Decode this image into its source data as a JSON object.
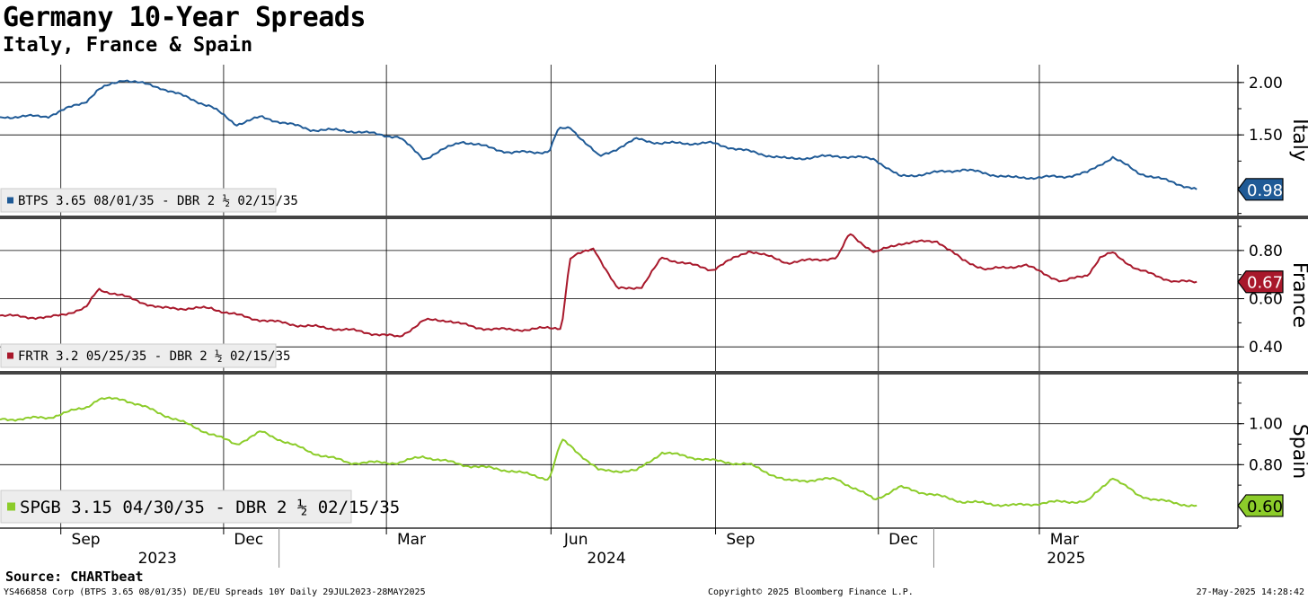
{
  "header": {
    "title": "Germany 10-Year Spreads",
    "subtitle": "Italy, France & Spain"
  },
  "footer": {
    "source": "Source: CHARTbeat",
    "left": "YS466858 Corp (BTPS 3.65 08/01/35) DE/EU Spreads 10Y  Daily 29JUL2023-28MAY2025",
    "middle": "Copyright© 2025 Bloomberg Finance L.P.",
    "right": "27-May-2025 14:28:42"
  },
  "colors": {
    "italy": "#1f5a96",
    "france": "#a8182b",
    "spain": "#8ccc2a",
    "grid": "#000000"
  },
  "chart_data": [
    {
      "type": "line",
      "panel": "Italy",
      "ylabel": "Italy",
      "legend": "BTPS 3.65 08/01/35 - DBR 2 ½ 02/15/35",
      "last_value": "0.98",
      "yticks": [
        2.0,
        1.5
      ],
      "ytick_labels": [
        "2.00",
        "1.50"
      ],
      "ylim": [
        0.73,
        2.17
      ],
      "x": [
        "2023-07-29",
        "2023-08-25",
        "2023-09-15",
        "2023-09-22",
        "2023-10-06",
        "2023-10-27",
        "2023-11-24",
        "2023-12-08",
        "2023-12-22",
        "2024-01-19",
        "2024-02-09",
        "2024-03-08",
        "2024-03-22",
        "2024-04-12",
        "2024-05-10",
        "2024-05-31",
        "2024-06-05",
        "2024-06-12",
        "2024-06-28",
        "2024-07-19",
        "2024-08-02",
        "2024-08-30",
        "2024-09-20",
        "2024-10-11",
        "2024-11-08",
        "2024-11-29",
        "2024-12-13",
        "2025-01-17",
        "2025-02-14",
        "2025-03-14",
        "2025-03-28",
        "2025-04-11",
        "2025-04-25",
        "2025-05-16",
        "2025-05-28"
      ],
      "y": [
        1.67,
        1.68,
        1.82,
        1.93,
        2.03,
        1.95,
        1.77,
        1.6,
        1.67,
        1.55,
        1.54,
        1.48,
        1.27,
        1.44,
        1.33,
        1.34,
        1.55,
        1.57,
        1.29,
        1.46,
        1.42,
        1.42,
        1.34,
        1.27,
        1.3,
        1.27,
        1.1,
        1.17,
        1.09,
        1.1,
        1.14,
        1.29,
        1.14,
        1.04,
        0.98
      ]
    },
    {
      "type": "line",
      "panel": "France",
      "ylabel": "France",
      "legend": "FRTR 3.2 05/25/35 - DBR 2 ½ 02/15/35",
      "last_value": "0.67",
      "yticks": [
        0.8,
        0.6,
        0.4
      ],
      "ytick_labels": [
        "0.80",
        "0.60",
        "0.40"
      ],
      "ylim": [
        0.3,
        0.93
      ],
      "x": [
        "2023-07-29",
        "2023-08-25",
        "2023-09-15",
        "2023-09-22",
        "2023-10-06",
        "2023-10-27",
        "2023-11-24",
        "2023-12-15",
        "2024-01-12",
        "2024-02-09",
        "2024-03-08",
        "2024-03-22",
        "2024-04-05",
        "2024-04-19",
        "2024-05-10",
        "2024-06-07",
        "2024-06-10",
        "2024-06-12",
        "2024-06-25",
        "2024-07-01",
        "2024-07-08",
        "2024-07-22",
        "2024-08-02",
        "2024-08-30",
        "2024-09-20",
        "2024-10-11",
        "2024-10-25",
        "2024-11-08",
        "2024-11-15",
        "2024-11-29",
        "2024-12-13",
        "2025-01-03",
        "2025-01-17",
        "2025-01-31",
        "2025-02-21",
        "2025-03-14",
        "2025-03-28",
        "2025-04-04",
        "2025-04-11",
        "2025-04-25",
        "2025-05-16",
        "2025-05-28"
      ],
      "y": [
        0.53,
        0.52,
        0.56,
        0.64,
        0.61,
        0.56,
        0.56,
        0.52,
        0.49,
        0.47,
        0.44,
        0.51,
        0.51,
        0.48,
        0.47,
        0.48,
        0.68,
        0.77,
        0.81,
        0.73,
        0.64,
        0.65,
        0.77,
        0.72,
        0.8,
        0.75,
        0.76,
        0.77,
        0.87,
        0.79,
        0.83,
        0.84,
        0.76,
        0.72,
        0.74,
        0.67,
        0.7,
        0.77,
        0.79,
        0.72,
        0.67,
        0.67
      ]
    },
    {
      "type": "line",
      "panel": "Spain",
      "ylabel": "Spain",
      "legend": "SPGB 3.15 04/30/35 - DBR 2 ½ 02/15/35",
      "last_value": "0.60",
      "yticks": [
        1.0,
        0.8
      ],
      "ytick_labels": [
        "1.00",
        "0.80"
      ],
      "ylim": [
        0.49,
        1.24
      ],
      "x": [
        "2023-07-29",
        "2023-08-25",
        "2023-09-15",
        "2023-09-22",
        "2023-10-06",
        "2023-10-27",
        "2023-11-10",
        "2023-12-08",
        "2023-12-22",
        "2024-01-19",
        "2024-02-09",
        "2024-03-08",
        "2024-03-22",
        "2024-04-12",
        "2024-05-10",
        "2024-05-31",
        "2024-06-07",
        "2024-06-12",
        "2024-06-28",
        "2024-07-19",
        "2024-08-02",
        "2024-08-30",
        "2024-09-20",
        "2024-10-11",
        "2024-11-08",
        "2024-11-29",
        "2024-12-13",
        "2025-01-17",
        "2025-02-14",
        "2025-03-14",
        "2025-03-28",
        "2025-04-11",
        "2025-04-25",
        "2025-05-16",
        "2025-05-28"
      ],
      "y": [
        1.02,
        1.03,
        1.08,
        1.12,
        1.12,
        1.05,
        1.0,
        0.9,
        0.96,
        0.86,
        0.81,
        0.81,
        0.84,
        0.8,
        0.77,
        0.73,
        0.92,
        0.89,
        0.77,
        0.77,
        0.86,
        0.82,
        0.8,
        0.72,
        0.73,
        0.63,
        0.69,
        0.62,
        0.6,
        0.62,
        0.62,
        0.74,
        0.65,
        0.61,
        0.6
      ]
    }
  ],
  "x_axis": {
    "months": [
      "Sep",
      "Dec",
      "Mar",
      "Jun",
      "Sep",
      "Dec",
      "Mar"
    ],
    "month_dates": [
      "2023-09-15",
      "2023-12-15",
      "2024-03-15",
      "2024-06-15",
      "2024-09-15",
      "2024-12-15",
      "2025-03-15"
    ],
    "years": [
      "2023",
      "2024",
      "2025"
    ],
    "year_dates": [
      "2023-10-25",
      "2024-07-02",
      "2025-03-16"
    ],
    "grid_dates": [
      "2023-09-01",
      "2023-12-01",
      "2024-03-01",
      "2024-06-01",
      "2024-09-01",
      "2024-12-01",
      "2025-03-01"
    ],
    "year_boundaries": [
      "2024-01-01",
      "2025-01-01"
    ],
    "range": [
      "2023-07-29",
      "2025-06-20"
    ]
  }
}
